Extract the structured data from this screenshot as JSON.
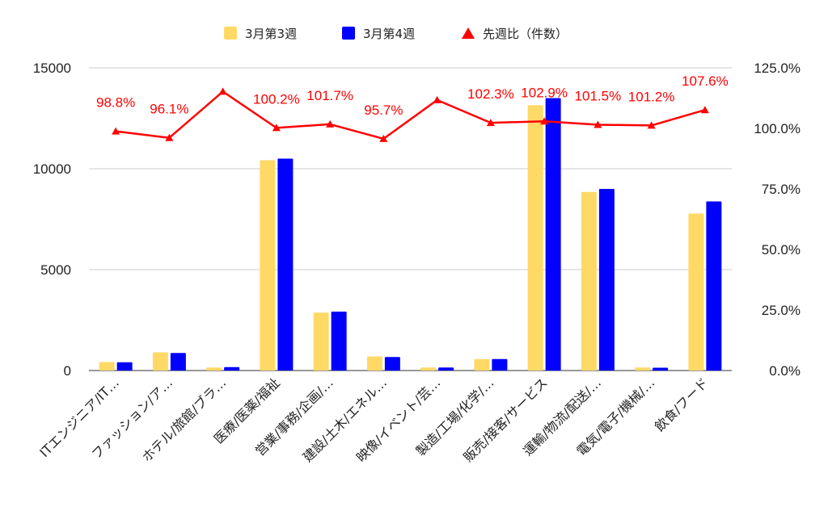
{
  "chart_data": {
    "type": "bar",
    "categories": [
      "ITエンジニア/IT…",
      "ファッション/ア…",
      "ホテル/旅館/ブラ…",
      "医療/医薬/福祉",
      "営業/事務/企画/…",
      "建設/土木/エネル…",
      "映像/イベント/芸…",
      "製造/工場/化学/…",
      "販売/接客/サービス",
      "運輸/物流/配送/…",
      "電気/電子/機械/…",
      "飲食/フード"
    ],
    "series": [
      {
        "name": "3月第3週",
        "type": "bar",
        "axis": "left",
        "color": "#ffd966",
        "values": [
          420,
          900,
          150,
          10420,
          2870,
          700,
          150,
          570,
          13150,
          8850,
          150,
          7780
        ]
      },
      {
        "name": "3月第4週",
        "type": "bar",
        "axis": "left",
        "color": "#0000ff",
        "values": [
          410,
          870,
          170,
          10500,
          2920,
          670,
          150,
          570,
          13500,
          9000,
          140,
          8380
        ]
      },
      {
        "name": "先週比（件数）",
        "type": "line",
        "axis": "right",
        "color": "#ff0000",
        "values": [
          0.988,
          0.961,
          1.152,
          1.002,
          1.017,
          0.957,
          1.117,
          1.023,
          1.029,
          1.015,
          1.012,
          1.076
        ],
        "labels": [
          "98.8%",
          "96.1%",
          "",
          "100.2%",
          "101.7%",
          "95.7%",
          "",
          "102.3%",
          "102.9%",
          "101.5%",
          "101.2%",
          "107.6%"
        ]
      }
    ],
    "left_axis": {
      "ylim": [
        0,
        15000
      ],
      "ticks": [
        0,
        5000,
        10000,
        15000
      ],
      "tick_labels": [
        "0",
        "5000",
        "10000",
        "15000"
      ]
    },
    "right_axis": {
      "ylim": [
        0,
        1.25
      ],
      "ticks": [
        0,
        0.25,
        0.5,
        0.75,
        1.0,
        1.25
      ],
      "tick_labels": [
        "0.0%",
        "25.0%",
        "50.0%",
        "75.0%",
        "100.0%",
        "125.0%"
      ]
    },
    "legend": {
      "position": "top",
      "items": [
        {
          "label": "3月第3週",
          "marker": "square",
          "color": "#ffd966"
        },
        {
          "label": "3月第4週",
          "marker": "square",
          "color": "#0000ff"
        },
        {
          "label": "先週比（件数）",
          "marker": "triangle",
          "color": "#ff0000"
        }
      ]
    },
    "grid": true
  }
}
